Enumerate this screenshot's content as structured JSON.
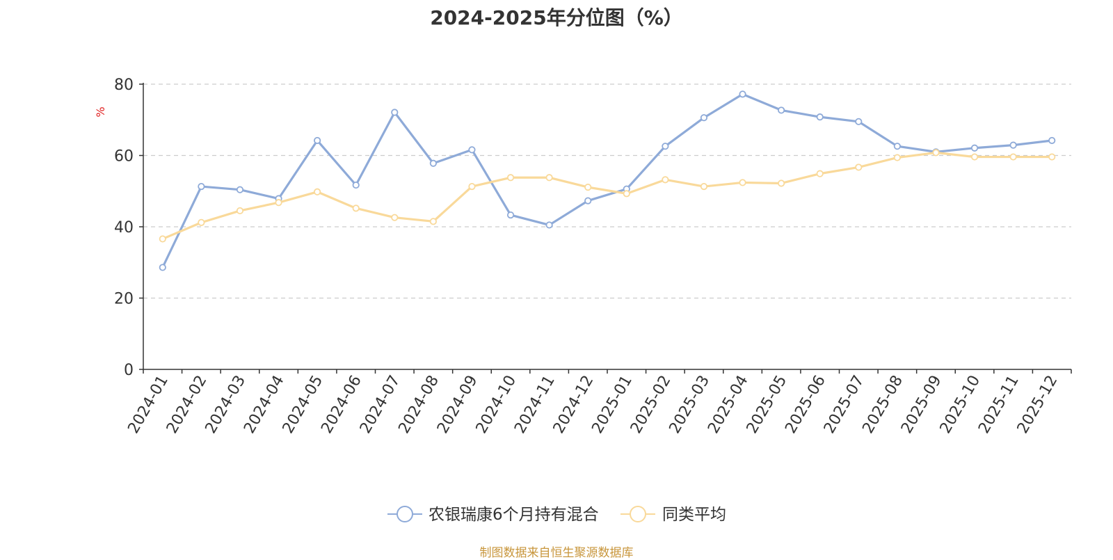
{
  "chart_data": {
    "type": "line",
    "title": "2024-2025年分位图（%）",
    "ylabel": "%",
    "xlabel": "",
    "ylim": [
      0,
      80
    ],
    "yticks": [
      0,
      20,
      40,
      60,
      80
    ],
    "grid": "horizontal-dashed",
    "legend_position": "bottom-center",
    "categories": [
      "2024-01",
      "2024-02",
      "2024-03",
      "2024-04",
      "2024-05",
      "2024-06",
      "2024-07",
      "2024-08",
      "2024-09",
      "2024-10",
      "2024-11",
      "2024-12",
      "2025-01",
      "2025-02",
      "2025-03",
      "2025-04",
      "2025-05",
      "2025-06",
      "2025-07",
      "2025-08",
      "2025-09",
      "2025-10",
      "2025-11",
      "2025-12"
    ],
    "series": [
      {
        "name": "农银瑞康6个月持有混合",
        "color": "#8eaad8",
        "values": [
          28.6,
          51.3,
          50.4,
          47.9,
          64.2,
          51.7,
          72.1,
          57.8,
          61.6,
          43.3,
          40.5,
          47.3,
          50.6,
          62.6,
          70.6,
          77.2,
          72.7,
          70.8,
          69.5,
          62.6,
          61.0,
          62.1,
          62.9,
          64.2
        ]
      },
      {
        "name": "同类平均",
        "color": "#f9d99a",
        "values": [
          36.6,
          41.2,
          44.5,
          46.8,
          49.8,
          45.2,
          42.6,
          41.5,
          51.3,
          53.8,
          53.8,
          51.1,
          49.3,
          53.2,
          51.3,
          52.4,
          52.2,
          54.9,
          56.7,
          59.4,
          60.8,
          59.6,
          59.6,
          59.6
        ]
      }
    ]
  },
  "source_note": "制图数据来自恒生聚源数据库"
}
